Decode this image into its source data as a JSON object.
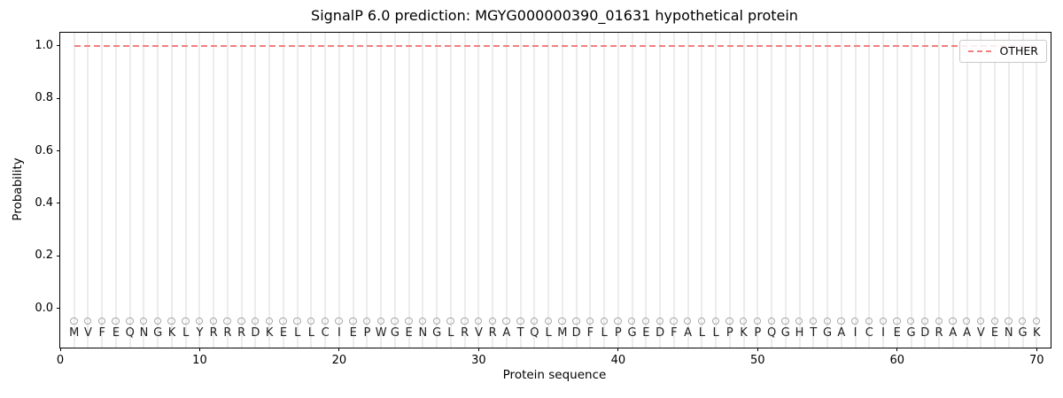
{
  "chart_data": {
    "type": "line",
    "title": "SignalP 6.0 prediction: MGYG000000390_01631 hypothetical protein",
    "xlabel": "Protein sequence",
    "ylabel": "Probability",
    "xlim": [
      0,
      71
    ],
    "ylim": [
      -0.15,
      1.05
    ],
    "xticks": [
      {
        "v": 0,
        "label": "0"
      },
      {
        "v": 10,
        "label": "10"
      },
      {
        "v": 20,
        "label": "20"
      },
      {
        "v": 30,
        "label": "30"
      },
      {
        "v": 40,
        "label": "40"
      },
      {
        "v": 50,
        "label": "50"
      },
      {
        "v": 60,
        "label": "60"
      },
      {
        "v": 70,
        "label": "70"
      }
    ],
    "yticks": [
      {
        "v": 0.0,
        "label": "0.0"
      },
      {
        "v": 0.2,
        "label": "0.2"
      },
      {
        "v": 0.4,
        "label": "0.4"
      },
      {
        "v": 0.6,
        "label": "0.6"
      },
      {
        "v": 0.8,
        "label": "0.8"
      },
      {
        "v": 1.0,
        "label": "1.0"
      }
    ],
    "grid": "vertical gridline at every residue position 1-70",
    "series": [
      {
        "name": "OTHER",
        "linestyle": "dashed",
        "color": "#f08080",
        "x_start": 1,
        "x_end": 70,
        "constant_y": 1.0
      }
    ],
    "legend": {
      "position": "upper right",
      "entries": [
        {
          "label": "OTHER",
          "color": "#f08080",
          "linestyle": "dashed"
        }
      ]
    },
    "sequence": "MVFEQNGKLYRRRDKELLCIEPWGENGLRVRATQLMDFLPGEDFALLPKPQGHTGAICIEGDRAAVENGK",
    "sequence_length": 70,
    "sequence_marker": {
      "shape": "open-circle",
      "y": -0.05,
      "color": "#a8a8a8"
    },
    "sequence_letter_y": -0.095
  },
  "colors": {
    "background": "#ffffff",
    "gridline": "#ececec",
    "spine": "#000000",
    "other_line": "#f08080",
    "marker_edge": "#a8a8a8",
    "letter": "#1f1f1f"
  }
}
